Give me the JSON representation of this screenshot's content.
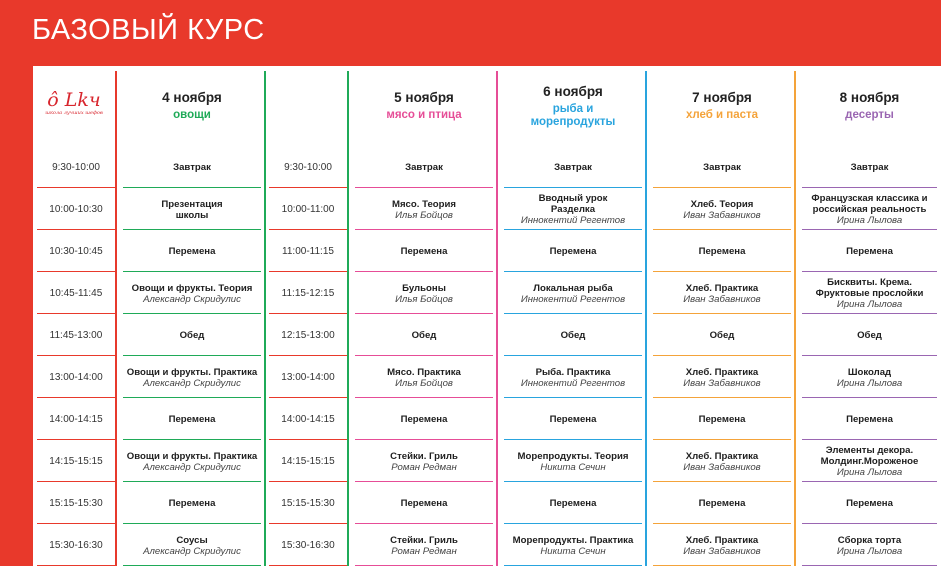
{
  "page_title": "БАЗОВЫЙ КУРС",
  "logo": {
    "mark": "ô Lkч",
    "tagline": "школа лучших шефов"
  },
  "colors": {
    "bg": "#e8392b",
    "row_line": "#e7392c",
    "time_line": "#e8392b",
    "vegetables": "#1faa58",
    "meat": "#e64d97",
    "fish": "#29a4de",
    "bread": "#f4a33a",
    "desserts": "#9a66b2"
  },
  "times_left": [
    "9:30-10:00",
    "10:00-10:30",
    "10:30-10:45",
    "10:45-11:45",
    "11:45-13:00",
    "13:00-14:00",
    "14:00-14:15",
    "14:15-15:15",
    "15:15-15:30",
    "15:30-16:30"
  ],
  "times_right": [
    "9:30-10:00",
    "10:00-11:00",
    "11:00-11:15",
    "11:15-12:15",
    "12:15-13:00",
    "13:00-14:00",
    "14:00-14:15",
    "14:15-15:15",
    "15:15-15:30",
    "15:30-16:30"
  ],
  "days": [
    {
      "date": "4 ноября",
      "theme": "овощи",
      "color": "#1faa58",
      "events": [
        {
          "title": "Завтрак",
          "teacher": ""
        },
        {
          "title": "Презентация\nшколы",
          "teacher": ""
        },
        {
          "title": "Перемена",
          "teacher": ""
        },
        {
          "title": "Овощи и фрукты. Теория",
          "teacher": "Александр Скридулис"
        },
        {
          "title": "Обед",
          "teacher": ""
        },
        {
          "title": "Овощи и фрукты. Практика",
          "teacher": "Александр Скридулис"
        },
        {
          "title": "Перемена",
          "teacher": ""
        },
        {
          "title": "Овощи и фрукты. Практика",
          "teacher": "Александр Скридулис"
        },
        {
          "title": "Перемена",
          "teacher": ""
        },
        {
          "title": "Соусы",
          "teacher": "Александр Скридулис"
        }
      ]
    },
    {
      "date": "5 ноября",
      "theme": "мясо и птица",
      "color": "#e64d97",
      "events": [
        {
          "title": "Завтрак",
          "teacher": ""
        },
        {
          "title": "Мясо. Теория",
          "teacher": "Илья Бойцов"
        },
        {
          "title": "Перемена",
          "teacher": ""
        },
        {
          "title": "Бульоны",
          "teacher": "Илья Бойцов"
        },
        {
          "title": "Обед",
          "teacher": ""
        },
        {
          "title": "Мясо. Практика",
          "teacher": "Илья Бойцов"
        },
        {
          "title": "Перемена",
          "teacher": ""
        },
        {
          "title": "Стейки. Гриль",
          "teacher": "Роман Редман"
        },
        {
          "title": "Перемена",
          "teacher": ""
        },
        {
          "title": "Стейки. Гриль",
          "teacher": "Роман Редман"
        }
      ]
    },
    {
      "date": "6 ноября",
      "theme": "рыба и\nморепродукты",
      "color": "#29a4de",
      "events": [
        {
          "title": "Завтрак",
          "teacher": ""
        },
        {
          "title": "Вводный урок\nРазделка",
          "teacher": "Иннокентий Регентов"
        },
        {
          "title": "Перемена",
          "teacher": ""
        },
        {
          "title": "Локальная рыба",
          "teacher": "Иннокентий Регентов"
        },
        {
          "title": "Обед",
          "teacher": ""
        },
        {
          "title": "Рыба. Практика",
          "teacher": "Иннокентий Регентов"
        },
        {
          "title": "Перемена",
          "teacher": ""
        },
        {
          "title": "Морепродукты. Теория",
          "teacher": "Никита Сечин"
        },
        {
          "title": "Перемена",
          "teacher": ""
        },
        {
          "title": "Морепродукты. Практика",
          "teacher": "Никита Сечин"
        }
      ]
    },
    {
      "date": "7 ноября",
      "theme": "хлеб и паста",
      "color": "#f4a33a",
      "events": [
        {
          "title": "Завтрак",
          "teacher": ""
        },
        {
          "title": "Хлеб. Теория",
          "teacher": "Иван Забавников"
        },
        {
          "title": "Перемена",
          "teacher": ""
        },
        {
          "title": "Хлеб. Практика",
          "teacher": "Иван Забавников"
        },
        {
          "title": "Обед",
          "teacher": ""
        },
        {
          "title": "Хлеб. Практика",
          "teacher": "Иван Забавников"
        },
        {
          "title": "Перемена",
          "teacher": ""
        },
        {
          "title": "Хлеб. Практика",
          "teacher": "Иван Забавников"
        },
        {
          "title": "Перемена",
          "teacher": ""
        },
        {
          "title": "Хлеб. Практика",
          "teacher": "Иван Забавников"
        }
      ]
    },
    {
      "date": "8 ноября",
      "theme": "десерты",
      "color": "#9a66b2",
      "events": [
        {
          "title": "Завтрак",
          "teacher": ""
        },
        {
          "title": "Французская классика и\nроссийская реальность",
          "teacher": "Ирина Лылова"
        },
        {
          "title": "Перемена",
          "teacher": ""
        },
        {
          "title": "Бисквиты. Крема.\nФруктовые прослойки",
          "teacher": "Ирина Лылова"
        },
        {
          "title": "Обед",
          "teacher": ""
        },
        {
          "title": "Шоколад",
          "teacher": "Ирина Лылова"
        },
        {
          "title": "Перемена",
          "teacher": ""
        },
        {
          "title": "Элементы декора.\nМолдинг.Мороженое",
          "teacher": "Ирина Лылова"
        },
        {
          "title": "Перемена",
          "teacher": ""
        },
        {
          "title": "Сборка торта",
          "teacher": "Ирина Лылова"
        }
      ]
    }
  ]
}
